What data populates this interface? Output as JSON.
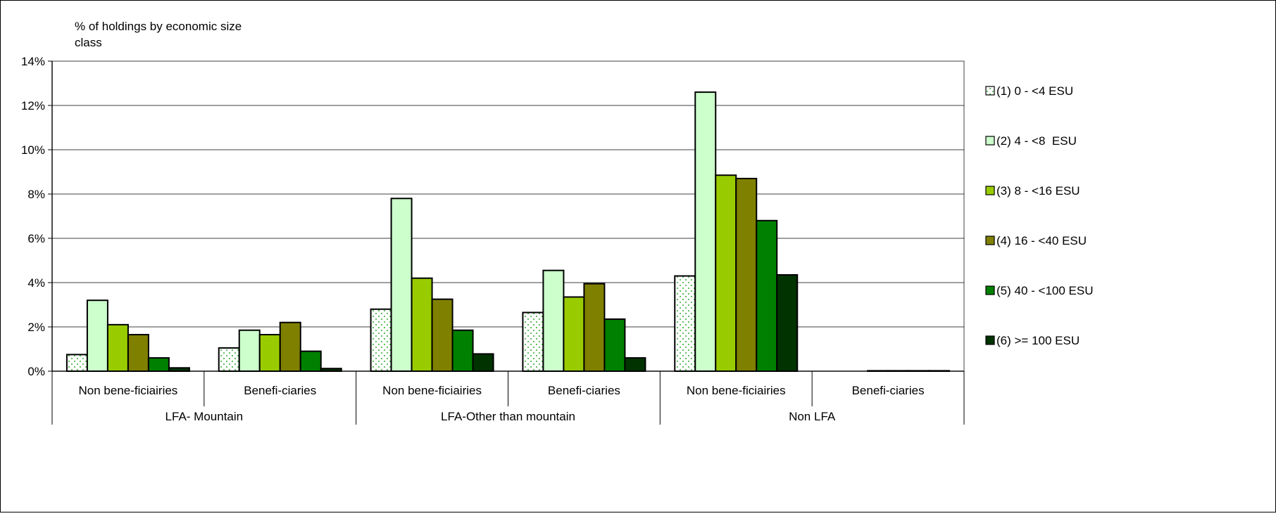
{
  "chart_data": {
    "type": "bar",
    "ylabel": "% of holdings by economic size class",
    "ylim": [
      0,
      14
    ],
    "yticks": [
      0,
      2,
      4,
      6,
      8,
      10,
      12,
      14
    ],
    "ytick_labels": [
      "0%",
      "2%",
      "4%",
      "6%",
      "8%",
      "10%",
      "12%",
      "14%"
    ],
    "grid": true,
    "legend_position": "right",
    "groups": [
      {
        "label": "LFA- Mountain",
        "categories": [
          "Non bene-ficiairies",
          "Benefi-ciaries"
        ]
      },
      {
        "label": "LFA-Other than mountain",
        "categories": [
          "Non bene-ficiairies",
          "Benefi-ciaries"
        ]
      },
      {
        "label": "Non LFA",
        "categories": [
          "Non bene-ficiairies",
          "Benefi-ciaries"
        ]
      }
    ],
    "categories": [
      "Non bene-ficiairies",
      "Benefi-ciaries",
      "Non bene-ficiairies",
      "Benefi-ciaries",
      "Non bene-ficiairies",
      "Benefi-ciaries"
    ],
    "series": [
      {
        "name": "(1) 0 - <4 ESU",
        "color": "#ffffff",
        "pattern": "dots",
        "values": [
          0.75,
          1.05,
          2.8,
          2.65,
          4.3,
          0.0
        ]
      },
      {
        "name": "(2) 4 - <8  ESU",
        "color": "#ccffcc",
        "values": [
          3.2,
          1.85,
          7.8,
          4.55,
          12.6,
          0.0
        ]
      },
      {
        "name": "(3) 8 - <16 ESU",
        "color": "#99cc00",
        "values": [
          2.1,
          1.65,
          4.2,
          3.35,
          8.85,
          0.02
        ]
      },
      {
        "name": "(4) 16 - <40 ESU",
        "color": "#808000",
        "values": [
          1.65,
          2.2,
          3.25,
          3.95,
          8.7,
          0.02
        ]
      },
      {
        "name": "(5) 40 - <100 ESU",
        "color": "#008000",
        "values": [
          0.6,
          0.9,
          1.85,
          2.35,
          6.8,
          0.02
        ]
      },
      {
        "name": "(6) >= 100 ESU",
        "color": "#003300",
        "values": [
          0.15,
          0.12,
          0.78,
          0.6,
          4.35,
          0.02
        ]
      }
    ]
  }
}
